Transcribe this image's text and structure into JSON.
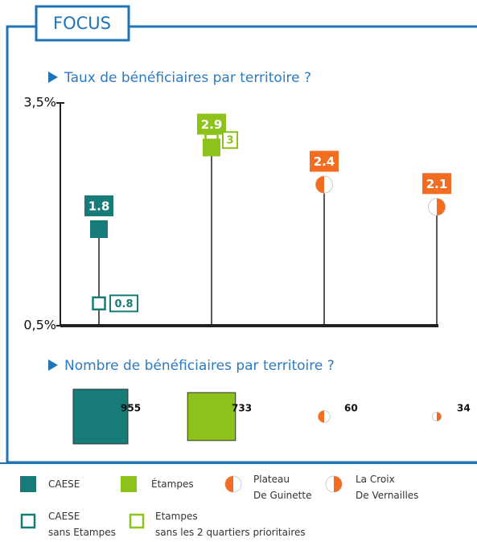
{
  "header": {
    "title": "FOCUS"
  },
  "chart_data": [
    {
      "type": "lollipop",
      "title": "Taux de bénéficiaires par territoire ?",
      "categories": [
        null,
        null,
        null,
        null
      ],
      "ylim": [
        0.5,
        3.5
      ],
      "yticks": [
        {
          "value": 0.5,
          "label": "0,5%"
        },
        {
          "value": 3.5,
          "label": "3,5%"
        }
      ],
      "series": [
        {
          "name": "CAESE",
          "color": "#177b78",
          "marker": "square",
          "values": [
            1.8,
            null,
            null,
            null
          ]
        },
        {
          "name": "Étampes",
          "color": "#8dc21b",
          "marker": "square",
          "values": [
            null,
            2.9,
            null,
            null
          ]
        },
        {
          "name": "Plateau\nDe Guinette",
          "color": "#f26c22",
          "marker": "half-left",
          "values": [
            null,
            null,
            2.4,
            null
          ]
        },
        {
          "name": "La Croix\nDe Vernailles",
          "color": "#f26c22",
          "marker": "half-right",
          "values": [
            null,
            null,
            null,
            2.1
          ]
        },
        {
          "name": "CAESE\nsans Etampes",
          "color": "#177b78",
          "marker": "square-outline",
          "values": [
            0.8,
            null,
            null,
            null
          ]
        },
        {
          "name": "Etampes\nsans les 2 quartiers prioritaires",
          "color": "#8dc21b",
          "marker": "square-outline",
          "values": [
            null,
            3,
            null,
            null
          ]
        }
      ]
    },
    {
      "type": "size",
      "title": "Nombre de bénéficiaires par territoire ?",
      "categories": [
        null,
        null,
        null,
        null
      ],
      "values": [
        955,
        733,
        60,
        34
      ],
      "colors": [
        "#177b78",
        "#8dc21b",
        "#f26c22",
        "#f26c22"
      ],
      "markers": [
        "square",
        "square",
        "half-left",
        "half-right"
      ]
    }
  ]
}
